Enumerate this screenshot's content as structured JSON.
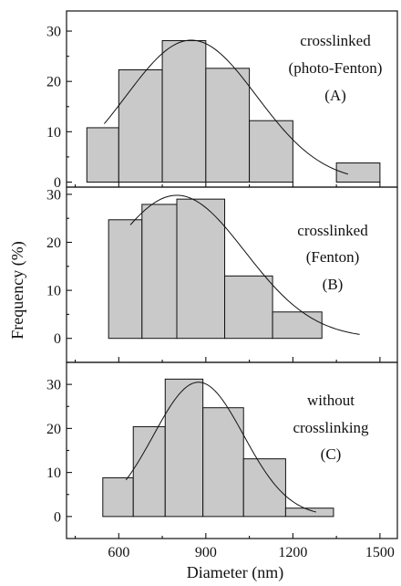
{
  "chart_data": {
    "type": "bar",
    "xlabel": "Diameter (nm)",
    "ylabel": "Frequency (%)",
    "xlim": [
      420,
      1560
    ],
    "xticks": [
      600,
      900,
      1200,
      1500
    ],
    "xtick_labels": [
      "600",
      "900",
      "1200",
      "1500"
    ],
    "panels": [
      {
        "label_lines": [
          "crosslinked",
          "(photo-Fenton)",
          "(A)"
        ],
        "ylim": [
          -1,
          34
        ],
        "yticks": [
          0,
          10,
          20,
          30
        ],
        "ytick_labels": [
          "0",
          "10",
          "20",
          "30"
        ],
        "bins": [
          {
            "from": 490,
            "to": 600,
            "value": 10.8
          },
          {
            "from": 600,
            "to": 750,
            "value": 22.3
          },
          {
            "from": 750,
            "to": 900,
            "value": 28.1
          },
          {
            "from": 900,
            "to": 1050,
            "value": 22.6
          },
          {
            "from": 1050,
            "to": 1200,
            "value": 12.2
          },
          {
            "from": 1200,
            "to": 1350,
            "value": 0
          },
          {
            "from": 1350,
            "to": 1500,
            "value": 3.8
          }
        ],
        "fit": {
          "mean": 850,
          "sd": 225,
          "peak": 28.2,
          "from": 550,
          "to": 1390
        }
      },
      {
        "label_lines": [
          "crosslinked",
          "(Fenton)",
          "(B)"
        ],
        "ylim": [
          -5,
          31.5
        ],
        "yticks": [
          0,
          10,
          20,
          30
        ],
        "ytick_labels": [
          "0",
          "10",
          "20",
          "30"
        ],
        "bins": [
          {
            "from": 565,
            "to": 680,
            "value": 24.7
          },
          {
            "from": 680,
            "to": 800,
            "value": 27.9
          },
          {
            "from": 800,
            "to": 965,
            "value": 29.0
          },
          {
            "from": 965,
            "to": 1130,
            "value": 13.0
          },
          {
            "from": 1130,
            "to": 1300,
            "value": 5.5
          },
          {
            "from": 1300,
            "to": 1505,
            "value": 0
          }
        ],
        "fit": {
          "mean": 800,
          "sd": 235,
          "peak": 29.8,
          "from": 640,
          "to": 1430
        }
      },
      {
        "label_lines": [
          "without",
          "crosslinking",
          "(C)"
        ],
        "ylim": [
          -5,
          35
        ],
        "yticks": [
          0,
          10,
          20,
          30
        ],
        "ytick_labels": [
          "0",
          "10",
          "20",
          "30"
        ],
        "bins": [
          {
            "from": 545,
            "to": 650,
            "value": 8.8
          },
          {
            "from": 650,
            "to": 760,
            "value": 20.4
          },
          {
            "from": 760,
            "to": 890,
            "value": 31.2
          },
          {
            "from": 890,
            "to": 1030,
            "value": 24.7
          },
          {
            "from": 1030,
            "to": 1175,
            "value": 13.1
          },
          {
            "from": 1175,
            "to": 1340,
            "value": 1.9
          }
        ],
        "fit": {
          "mean": 875,
          "sd": 155,
          "peak": 30.5,
          "from": 625,
          "to": 1280
        }
      }
    ]
  }
}
